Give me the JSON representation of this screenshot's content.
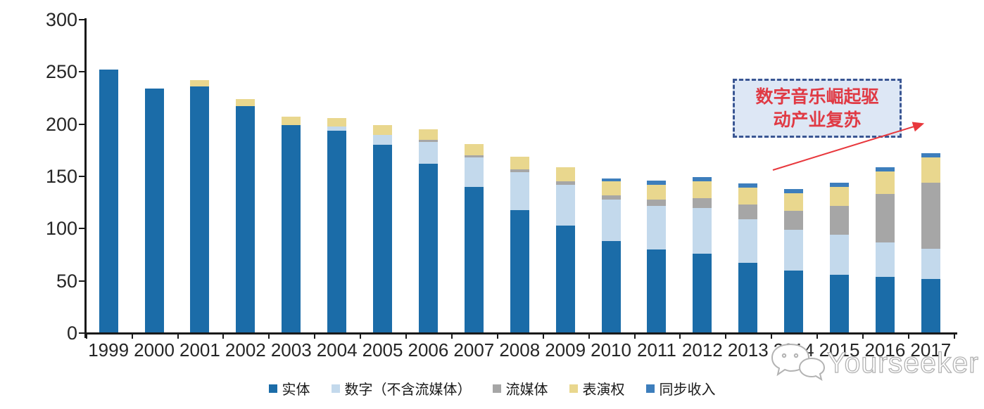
{
  "chart_data": {
    "type": "bar",
    "stacked": true,
    "categories": [
      "1999",
      "2000",
      "2001",
      "2002",
      "2003",
      "2004",
      "2005",
      "2006",
      "2007",
      "2008",
      "2009",
      "2010",
      "2011",
      "2012",
      "2013",
      "2014",
      "2015",
      "2016",
      "2017"
    ],
    "series": [
      {
        "key": "physical",
        "name": "实体",
        "color": "#1b6ca8",
        "values": [
          252,
          234,
          236,
          217,
          199,
          194,
          180,
          162,
          140,
          118,
          103,
          88,
          80,
          76,
          67,
          60,
          56,
          54,
          52
        ]
      },
      {
        "key": "digital-excl-streaming",
        "name": "数字（不含流媒体）",
        "color": "#c3d9ec",
        "values": [
          0,
          0,
          0,
          0,
          0,
          4,
          10,
          21,
          28,
          36,
          39,
          40,
          42,
          44,
          42,
          39,
          38,
          33,
          29
        ]
      },
      {
        "key": "streaming",
        "name": "流媒体",
        "color": "#a6a6a6",
        "values": [
          0,
          0,
          0,
          0,
          0,
          0,
          0,
          2,
          2,
          3,
          3,
          4,
          6,
          9,
          14,
          18,
          28,
          46,
          63
        ]
      },
      {
        "key": "performance-rights",
        "name": "表演权",
        "color": "#e9d78e",
        "values": [
          0,
          0,
          6,
          7,
          8,
          8,
          9,
          10,
          11,
          12,
          14,
          13,
          14,
          16,
          16,
          17,
          18,
          22,
          24
        ]
      },
      {
        "key": "sync-revenue",
        "name": "同步收入",
        "color": "#3d7ebc",
        "values": [
          0,
          0,
          0,
          0,
          0,
          0,
          0,
          0,
          0,
          0,
          0,
          3,
          4,
          4,
          4,
          4,
          4,
          4,
          4
        ]
      }
    ],
    "ylim": [
      0,
      300
    ],
    "yticks": [
      0,
      50,
      100,
      150,
      200,
      250,
      300
    ],
    "grid": false,
    "legend_position": "bottom"
  },
  "annotation": {
    "line1": "数字音乐崛起驱",
    "line2": "动产业复苏",
    "text_color": "#e03a44",
    "border_color": "#3a5693",
    "fill_color": "#dde7f5",
    "arrow_color": "#e8383d"
  },
  "watermark": {
    "text": "Yourseeker",
    "icon": "chat-bubbles-icon"
  }
}
